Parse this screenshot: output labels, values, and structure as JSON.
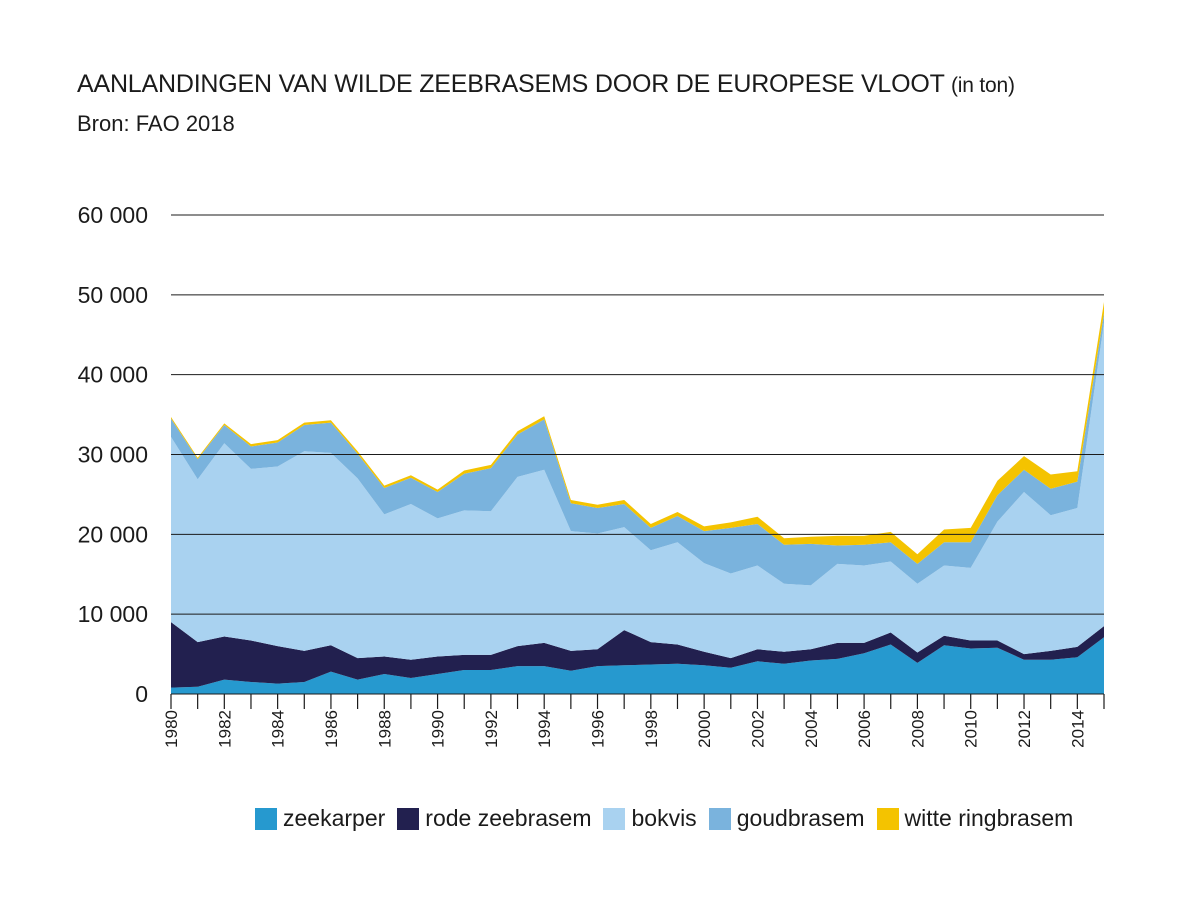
{
  "title": {
    "main": "AANLANDINGEN VAN WILDE ZEEBRASEMS DOOR DE EUROPESE VLOOT",
    "unit": "(in ton)"
  },
  "subtitle": "Bron: FAO 2018",
  "chart_data": {
    "type": "area",
    "stacked": true,
    "title": "AANLANDINGEN VAN WILDE ZEEBRASEMS DOOR DE EUROPESE VLOOT (in ton)",
    "subtitle": "Bron: FAO 2018",
    "x": [
      1980,
      1981,
      1982,
      1983,
      1984,
      1985,
      1986,
      1987,
      1988,
      1989,
      1990,
      1991,
      1992,
      1993,
      1994,
      1995,
      1996,
      1997,
      1998,
      1999,
      2000,
      2001,
      2002,
      2003,
      2004,
      2005,
      2006,
      2007,
      2008,
      2009,
      2010,
      2011,
      2012,
      2013,
      2014,
      2015
    ],
    "x_tick_labels": [
      "1980",
      "1982",
      "1984",
      "1986",
      "1988",
      "1990",
      "1992",
      "1994",
      "1996",
      "1998",
      "2000",
      "2002",
      "2004",
      "2006",
      "2008",
      "2010",
      "2012",
      "2014"
    ],
    "ylim": [
      0,
      60000
    ],
    "y_ticks": [
      0,
      10000,
      20000,
      30000,
      40000,
      50000,
      60000
    ],
    "y_tick_labels": [
      "0",
      "10 000",
      "20 000",
      "30 000",
      "40 000",
      "50 000",
      "60 000"
    ],
    "grid": "horizontal",
    "legend_position": "bottom",
    "series": [
      {
        "name": "zeekarper",
        "color": "#2699cf",
        "values": [
          800,
          900,
          1800,
          1500,
          1300,
          1500,
          2800,
          1800,
          2500,
          2000,
          2500,
          3000,
          3000,
          3500,
          3500,
          2900,
          3500,
          3600,
          3700,
          3800,
          3600,
          3300,
          4100,
          3800,
          4200,
          4400,
          5100,
          6200,
          3900,
          6100,
          5700,
          5800,
          4300,
          4300,
          4600,
          7100
        ]
      },
      {
        "name": "rode zeebrasem",
        "color": "#22204f",
        "values": [
          8200,
          5600,
          5400,
          5200,
          4700,
          3900,
          3300,
          2700,
          2200,
          2300,
          2200,
          1900,
          1900,
          2500,
          2900,
          2500,
          2100,
          4400,
          2800,
          2400,
          1700,
          1200,
          1500,
          1500,
          1400,
          2000,
          1300,
          1500,
          1300,
          1200,
          1000,
          900,
          700,
          1100,
          1300,
          1400
        ]
      },
      {
        "name": "bokvis",
        "color": "#a9d2f0",
        "values": [
          23200,
          20400,
          24200,
          21500,
          22500,
          25000,
          24100,
          22500,
          17800,
          19500,
          17300,
          18100,
          18000,
          21200,
          21700,
          15000,
          14500,
          12900,
          11500,
          12800,
          11100,
          10600,
          10500,
          8500,
          8000,
          9900,
          9700,
          8900,
          8600,
          8800,
          9100,
          14900,
          20300,
          17000,
          17400,
          38000
        ]
      },
      {
        "name": "goudbrasem",
        "color": "#7ab3dd",
        "values": [
          2300,
          2500,
          2300,
          2800,
          3000,
          3300,
          3800,
          3100,
          3300,
          3300,
          3300,
          4600,
          5400,
          5300,
          6300,
          3500,
          3200,
          2900,
          2800,
          3300,
          4000,
          5700,
          5200,
          4900,
          5200,
          2300,
          2600,
          2400,
          2500,
          2900,
          3200,
          3300,
          2800,
          3300,
          3300,
          1200
        ]
      },
      {
        "name": "witte ringbrasem",
        "color": "#f4c300",
        "values": [
          200,
          200,
          200,
          300,
          300,
          300,
          300,
          300,
          300,
          300,
          300,
          400,
          400,
          400,
          400,
          400,
          400,
          500,
          500,
          500,
          600,
          700,
          900,
          800,
          900,
          1200,
          1100,
          1300,
          1200,
          1600,
          1800,
          1800,
          1700,
          1800,
          1300,
          1400
        ]
      }
    ]
  }
}
